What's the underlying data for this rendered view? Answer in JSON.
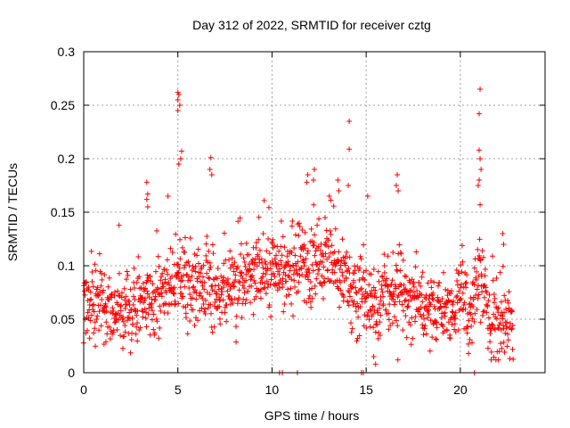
{
  "chart_data": {
    "type": "scatter",
    "title": "Day 312 of 2022, SRMTID for receiver cztg",
    "xlabel": "GPS time / hours",
    "ylabel": "SRMTID / TECUs",
    "xlim": [
      0,
      24.5
    ],
    "ylim": [
      0,
      0.3
    ],
    "x_ticks": [
      {
        "value": 0,
        "label": "0"
      },
      {
        "value": 5,
        "label": "5"
      },
      {
        "value": 10,
        "label": "10"
      },
      {
        "value": 15,
        "label": "15"
      },
      {
        "value": 20,
        "label": "20"
      }
    ],
    "y_ticks": [
      {
        "value": 0,
        "label": "0"
      },
      {
        "value": 0.05,
        "label": "0.05"
      },
      {
        "value": 0.1,
        "label": "0.1"
      },
      {
        "value": 0.15,
        "label": "0.15"
      },
      {
        "value": 0.2,
        "label": "0.2"
      },
      {
        "value": 0.25,
        "label": "0.25"
      },
      {
        "value": 0.3,
        "label": "0.3"
      }
    ],
    "grid": true,
    "marker": "+",
    "marker_color": "#ff0000",
    "series": [
      {
        "name": "SRMTID",
        "x_start": 0.0,
        "x_end": 22.8,
        "samples": 1400,
        "baseline_profile": [
          {
            "x": 0.0,
            "y": 0.075
          },
          {
            "x": 1.0,
            "y": 0.06
          },
          {
            "x": 2.0,
            "y": 0.057
          },
          {
            "x": 3.0,
            "y": 0.065
          },
          {
            "x": 4.0,
            "y": 0.07
          },
          {
            "x": 5.0,
            "y": 0.085
          },
          {
            "x": 6.0,
            "y": 0.078
          },
          {
            "x": 7.0,
            "y": 0.075
          },
          {
            "x": 8.0,
            "y": 0.085
          },
          {
            "x": 9.0,
            "y": 0.09
          },
          {
            "x": 10.0,
            "y": 0.09
          },
          {
            "x": 11.0,
            "y": 0.095
          },
          {
            "x": 12.0,
            "y": 0.1
          },
          {
            "x": 13.0,
            "y": 0.105
          },
          {
            "x": 14.0,
            "y": 0.085
          },
          {
            "x": 15.0,
            "y": 0.065
          },
          {
            "x": 16.0,
            "y": 0.07
          },
          {
            "x": 17.0,
            "y": 0.068
          },
          {
            "x": 18.0,
            "y": 0.06
          },
          {
            "x": 19.0,
            "y": 0.055
          },
          {
            "x": 20.0,
            "y": 0.07
          },
          {
            "x": 20.5,
            "y": 0.045
          },
          {
            "x": 21.0,
            "y": 0.1
          },
          {
            "x": 21.5,
            "y": 0.045
          },
          {
            "x": 22.0,
            "y": 0.05
          },
          {
            "x": 22.8,
            "y": 0.045
          }
        ],
        "spread": 0.025,
        "highlights": [
          {
            "x": 5.0,
            "y": 0.262
          },
          {
            "x": 5.05,
            "y": 0.26
          },
          {
            "x": 5.0,
            "y": 0.255
          },
          {
            "x": 5.1,
            "y": 0.25
          },
          {
            "x": 5.0,
            "y": 0.245
          },
          {
            "x": 5.2,
            "y": 0.207
          },
          {
            "x": 5.15,
            "y": 0.2
          },
          {
            "x": 5.05,
            "y": 0.195
          },
          {
            "x": 3.35,
            "y": 0.178
          },
          {
            "x": 3.4,
            "y": 0.167
          },
          {
            "x": 3.35,
            "y": 0.162
          },
          {
            "x": 3.4,
            "y": 0.155
          },
          {
            "x": 6.75,
            "y": 0.201
          },
          {
            "x": 6.7,
            "y": 0.19
          },
          {
            "x": 6.8,
            "y": 0.185
          },
          {
            "x": 12.25,
            "y": 0.19
          },
          {
            "x": 12.2,
            "y": 0.18
          },
          {
            "x": 11.9,
            "y": 0.185
          },
          {
            "x": 11.85,
            "y": 0.178
          },
          {
            "x": 13.5,
            "y": 0.18
          },
          {
            "x": 13.55,
            "y": 0.17
          },
          {
            "x": 14.1,
            "y": 0.235
          },
          {
            "x": 14.1,
            "y": 0.209
          },
          {
            "x": 14.05,
            "y": 0.175
          },
          {
            "x": 16.65,
            "y": 0.185
          },
          {
            "x": 16.6,
            "y": 0.175
          },
          {
            "x": 16.7,
            "y": 0.17
          },
          {
            "x": 21.05,
            "y": 0.265
          },
          {
            "x": 21.0,
            "y": 0.242
          },
          {
            "x": 21.0,
            "y": 0.208
          },
          {
            "x": 21.05,
            "y": 0.2
          },
          {
            "x": 21.1,
            "y": 0.19
          },
          {
            "x": 21.0,
            "y": 0.18
          },
          {
            "x": 20.95,
            "y": 0.175
          },
          {
            "x": 21.05,
            "y": 0.157
          },
          {
            "x": 22.25,
            "y": 0.13
          },
          {
            "x": 22.3,
            "y": 0.12
          },
          {
            "x": 15.5,
            "y": 0.008
          },
          {
            "x": 15.4,
            "y": 0.015
          }
        ],
        "zeros": [
          {
            "x": 10.4,
            "y": 0.0
          },
          {
            "x": 10.55,
            "y": 0.0
          },
          {
            "x": 11.35,
            "y": 0.0
          },
          {
            "x": 14.75,
            "y": 0.0
          },
          {
            "x": 14.85,
            "y": 0.0
          },
          {
            "x": 20.75,
            "y": 0.0
          }
        ]
      }
    ]
  }
}
